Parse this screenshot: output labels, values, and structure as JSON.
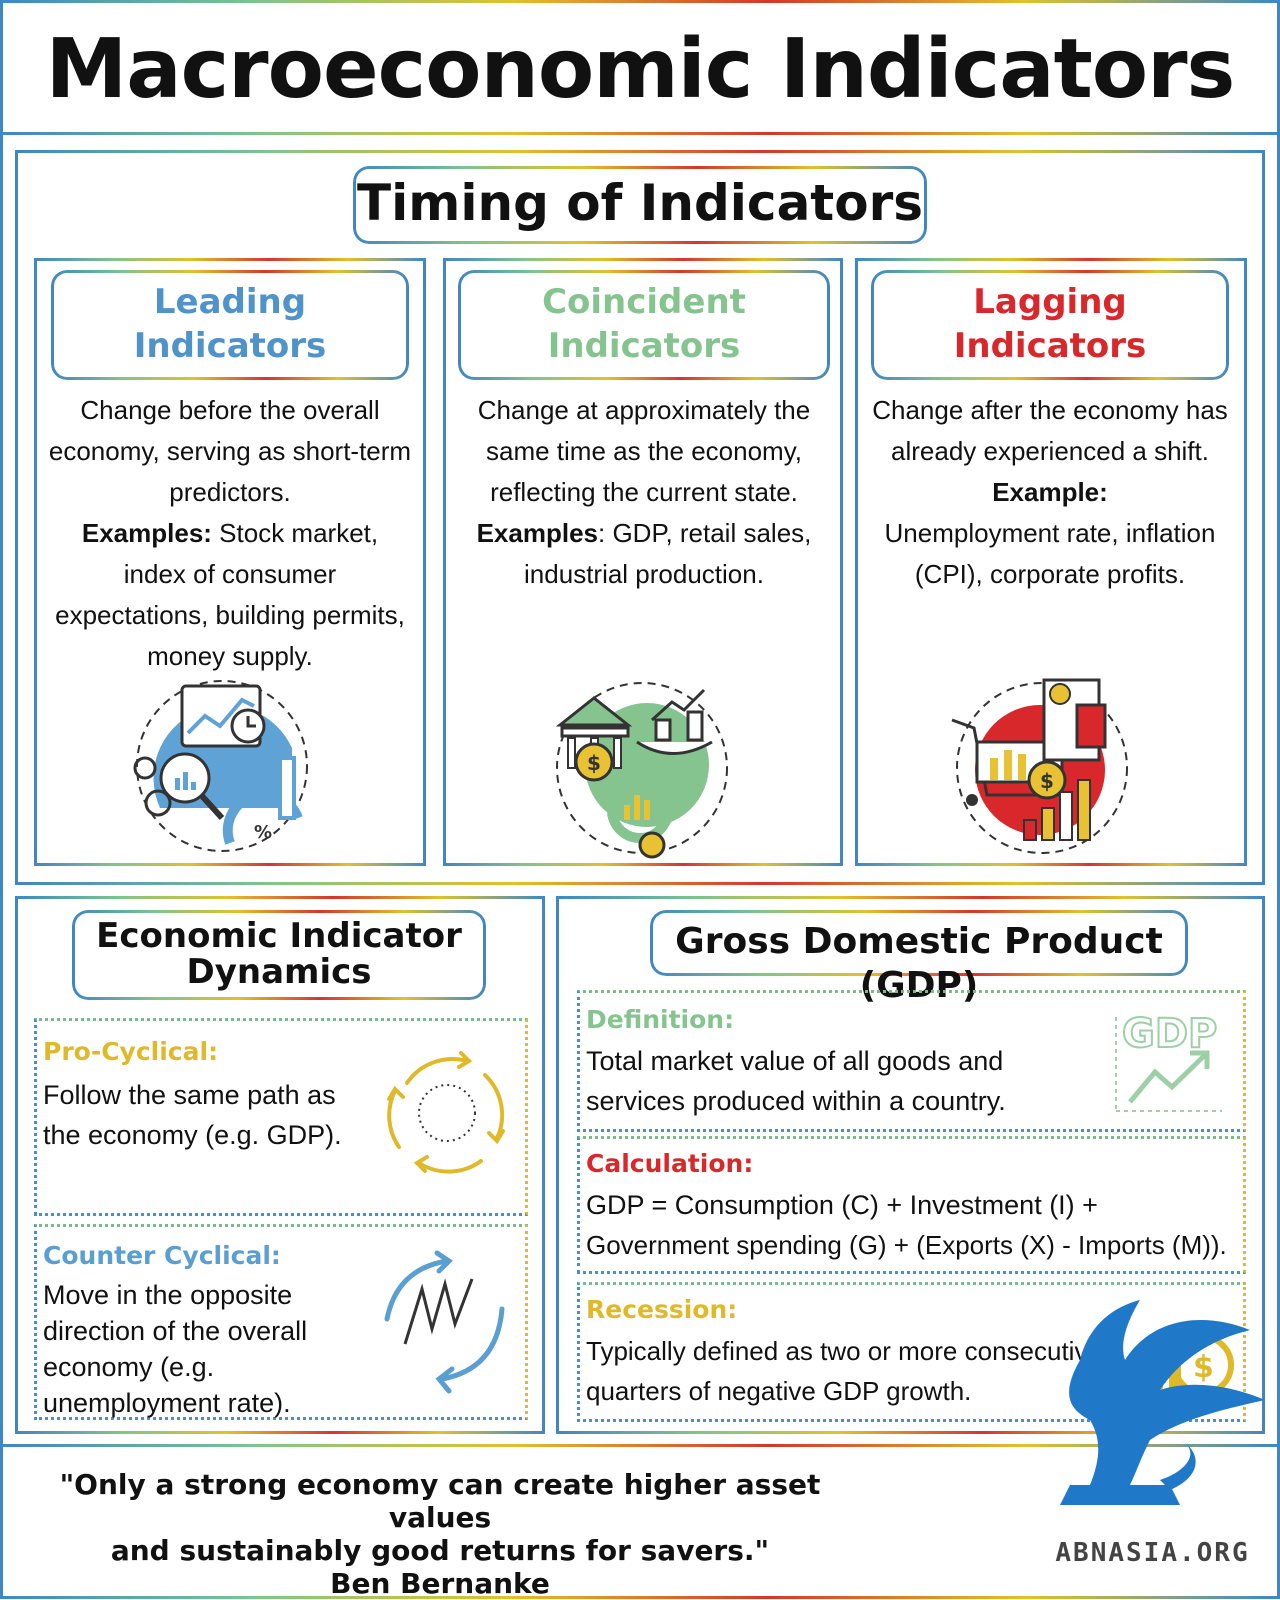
{
  "title": "Macroeconomic Indicators",
  "timing": {
    "heading": "Timing of Indicators",
    "columns": [
      {
        "title_line1": "Leading",
        "title_line2": "Indicators",
        "color": "#4f93c9",
        "desc": "Change before the overall economy, serving as short-term predictors.",
        "examples_label": "Examples:",
        "examples_text": " Stock market, index of consumer expectations, building permits, money supply.",
        "icon": "chart-analysis-icon"
      },
      {
        "title_line1": "Coincident",
        "title_line2": "Indicators",
        "color": "#86c48f",
        "desc": "Change at approximately the same time as the economy, reflecting the current state.",
        "examples_label": "Examples",
        "examples_text": ": GDP, retail sales, industrial production.",
        "icon": "bank-economy-icon"
      },
      {
        "title_line1": "Lagging",
        "title_line2": "Indicators",
        "color": "#d8282c",
        "desc": "Change after the economy has already experienced a shift.",
        "examples_label": "Example:",
        "examples_text": "Unemployment rate, inflation (CPI), corporate profits.",
        "icon": "shopping-cart-cost-icon"
      }
    ]
  },
  "dynamics": {
    "heading_line1": "Economic Indicator",
    "heading_line2": "Dynamics",
    "pro": {
      "label": "Pro-Cyclical:",
      "text": "Follow the same path as the economy (e.g. GDP).",
      "color": "#e0b92a",
      "icon": "cycle-arrows-icon"
    },
    "counter": {
      "label": "Counter Cyclical:",
      "text": "Move in the opposite direction of the overall economy (e.g. unemployment rate).",
      "color": "#5b9fd0",
      "icon": "counter-arrows-icon"
    }
  },
  "gdp": {
    "heading": "Gross Domestic Product (GDP)",
    "definition": {
      "label": "Definition:",
      "text": "Total market value of all goods and services produced within a country.",
      "color": "#86c48f",
      "icon": "gdp-growth-icon",
      "icon_text": "GDP"
    },
    "calculation": {
      "label": "Calculation:",
      "line1": "GDP = Consumption (C) + Investment (I) +",
      "line2": "Government spending (G) + (Exports (X) - Imports (M)).",
      "color": "#d8282c"
    },
    "recession": {
      "label": "Recession:",
      "text": "Typically defined as two or more consecutive quarters of negative GDP growth.",
      "color": "#e0b92a",
      "icon": "dollar-decline-icon"
    }
  },
  "quote": {
    "line1": "\"Only a strong economy can create higher asset values",
    "line2": "and sustainably good returns for savers.\"",
    "author": "Ben Bernanke"
  },
  "logo": {
    "text": "ABNASIA.ORG",
    "icon": "griffin-logo-icon",
    "color": "#1f78c8"
  }
}
